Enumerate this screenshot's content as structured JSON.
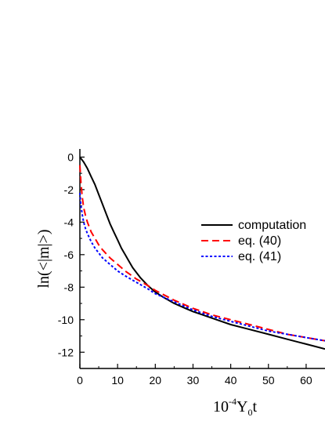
{
  "chart_data": {
    "type": "line",
    "xlim": [
      0,
      65
    ],
    "ylim": [
      -13,
      0.5
    ],
    "xticks": [
      0,
      10,
      20,
      30,
      40,
      50,
      60
    ],
    "yticks": [
      0,
      -2,
      -4,
      -6,
      -8,
      -10,
      -12
    ],
    "xtick_labels": [
      "0",
      "10",
      "20",
      "30",
      "40",
      "50",
      "60"
    ],
    "ytick_labels": [
      "0",
      "-2",
      "-4",
      "-6",
      "-8",
      "-10",
      "-12"
    ],
    "xlabel_parts": {
      "base": "10",
      "exp": "-4",
      "var": "Y",
      "sub": "0",
      "tail": "t"
    },
    "ylabel": "ln(<|m|>)",
    "legend_position": "right",
    "series": [
      {
        "name": "computation",
        "color": "#000000",
        "dash": "solid",
        "x": [
          0,
          1,
          2,
          3,
          4,
          5,
          6,
          7,
          8,
          9,
          10,
          11,
          12,
          13,
          14,
          15,
          16,
          18,
          20,
          22,
          25,
          28,
          30,
          35,
          40,
          45,
          50,
          55,
          60,
          65
        ],
        "y": [
          0,
          -0.3,
          -0.7,
          -1.2,
          -1.7,
          -2.3,
          -2.9,
          -3.5,
          -4.1,
          -4.6,
          -5.1,
          -5.6,
          -6.0,
          -6.4,
          -6.8,
          -7.1,
          -7.4,
          -7.9,
          -8.3,
          -8.6,
          -9.0,
          -9.3,
          -9.5,
          -9.9,
          -10.3,
          -10.6,
          -10.9,
          -11.2,
          -11.5,
          -11.8
        ]
      },
      {
        "name": "eq. (40)",
        "color": "#ff0000",
        "dash": "dashed",
        "x": [
          0,
          0.3,
          0.6,
          1,
          1.5,
          2,
          3,
          4,
          5,
          6,
          8,
          10,
          12,
          15,
          18,
          20,
          25,
          30,
          35,
          40,
          45,
          50,
          55,
          60,
          65
        ],
        "y": [
          -0.5,
          -1.6,
          -2.4,
          -3.1,
          -3.6,
          -4.0,
          -4.6,
          -5.0,
          -5.4,
          -5.7,
          -6.2,
          -6.6,
          -7.0,
          -7.5,
          -7.9,
          -8.2,
          -8.8,
          -9.3,
          -9.7,
          -10.0,
          -10.3,
          -10.6,
          -10.9,
          -11.1,
          -11.3
        ]
      },
      {
        "name": "eq. (41)",
        "color": "#0000ff",
        "dash": "dotted",
        "x": [
          0,
          0.3,
          0.6,
          1,
          1.5,
          2,
          3,
          4,
          5,
          6,
          8,
          10,
          12,
          15,
          18,
          20,
          25,
          30,
          35,
          40,
          45,
          50,
          55,
          60,
          65
        ],
        "y": [
          -2.2,
          -3.0,
          -3.5,
          -4.0,
          -4.4,
          -4.7,
          -5.2,
          -5.6,
          -5.9,
          -6.2,
          -6.6,
          -7.0,
          -7.3,
          -7.7,
          -8.1,
          -8.4,
          -8.9,
          -9.4,
          -9.8,
          -10.1,
          -10.4,
          -10.7,
          -10.9,
          -11.1,
          -11.3
        ]
      }
    ]
  }
}
